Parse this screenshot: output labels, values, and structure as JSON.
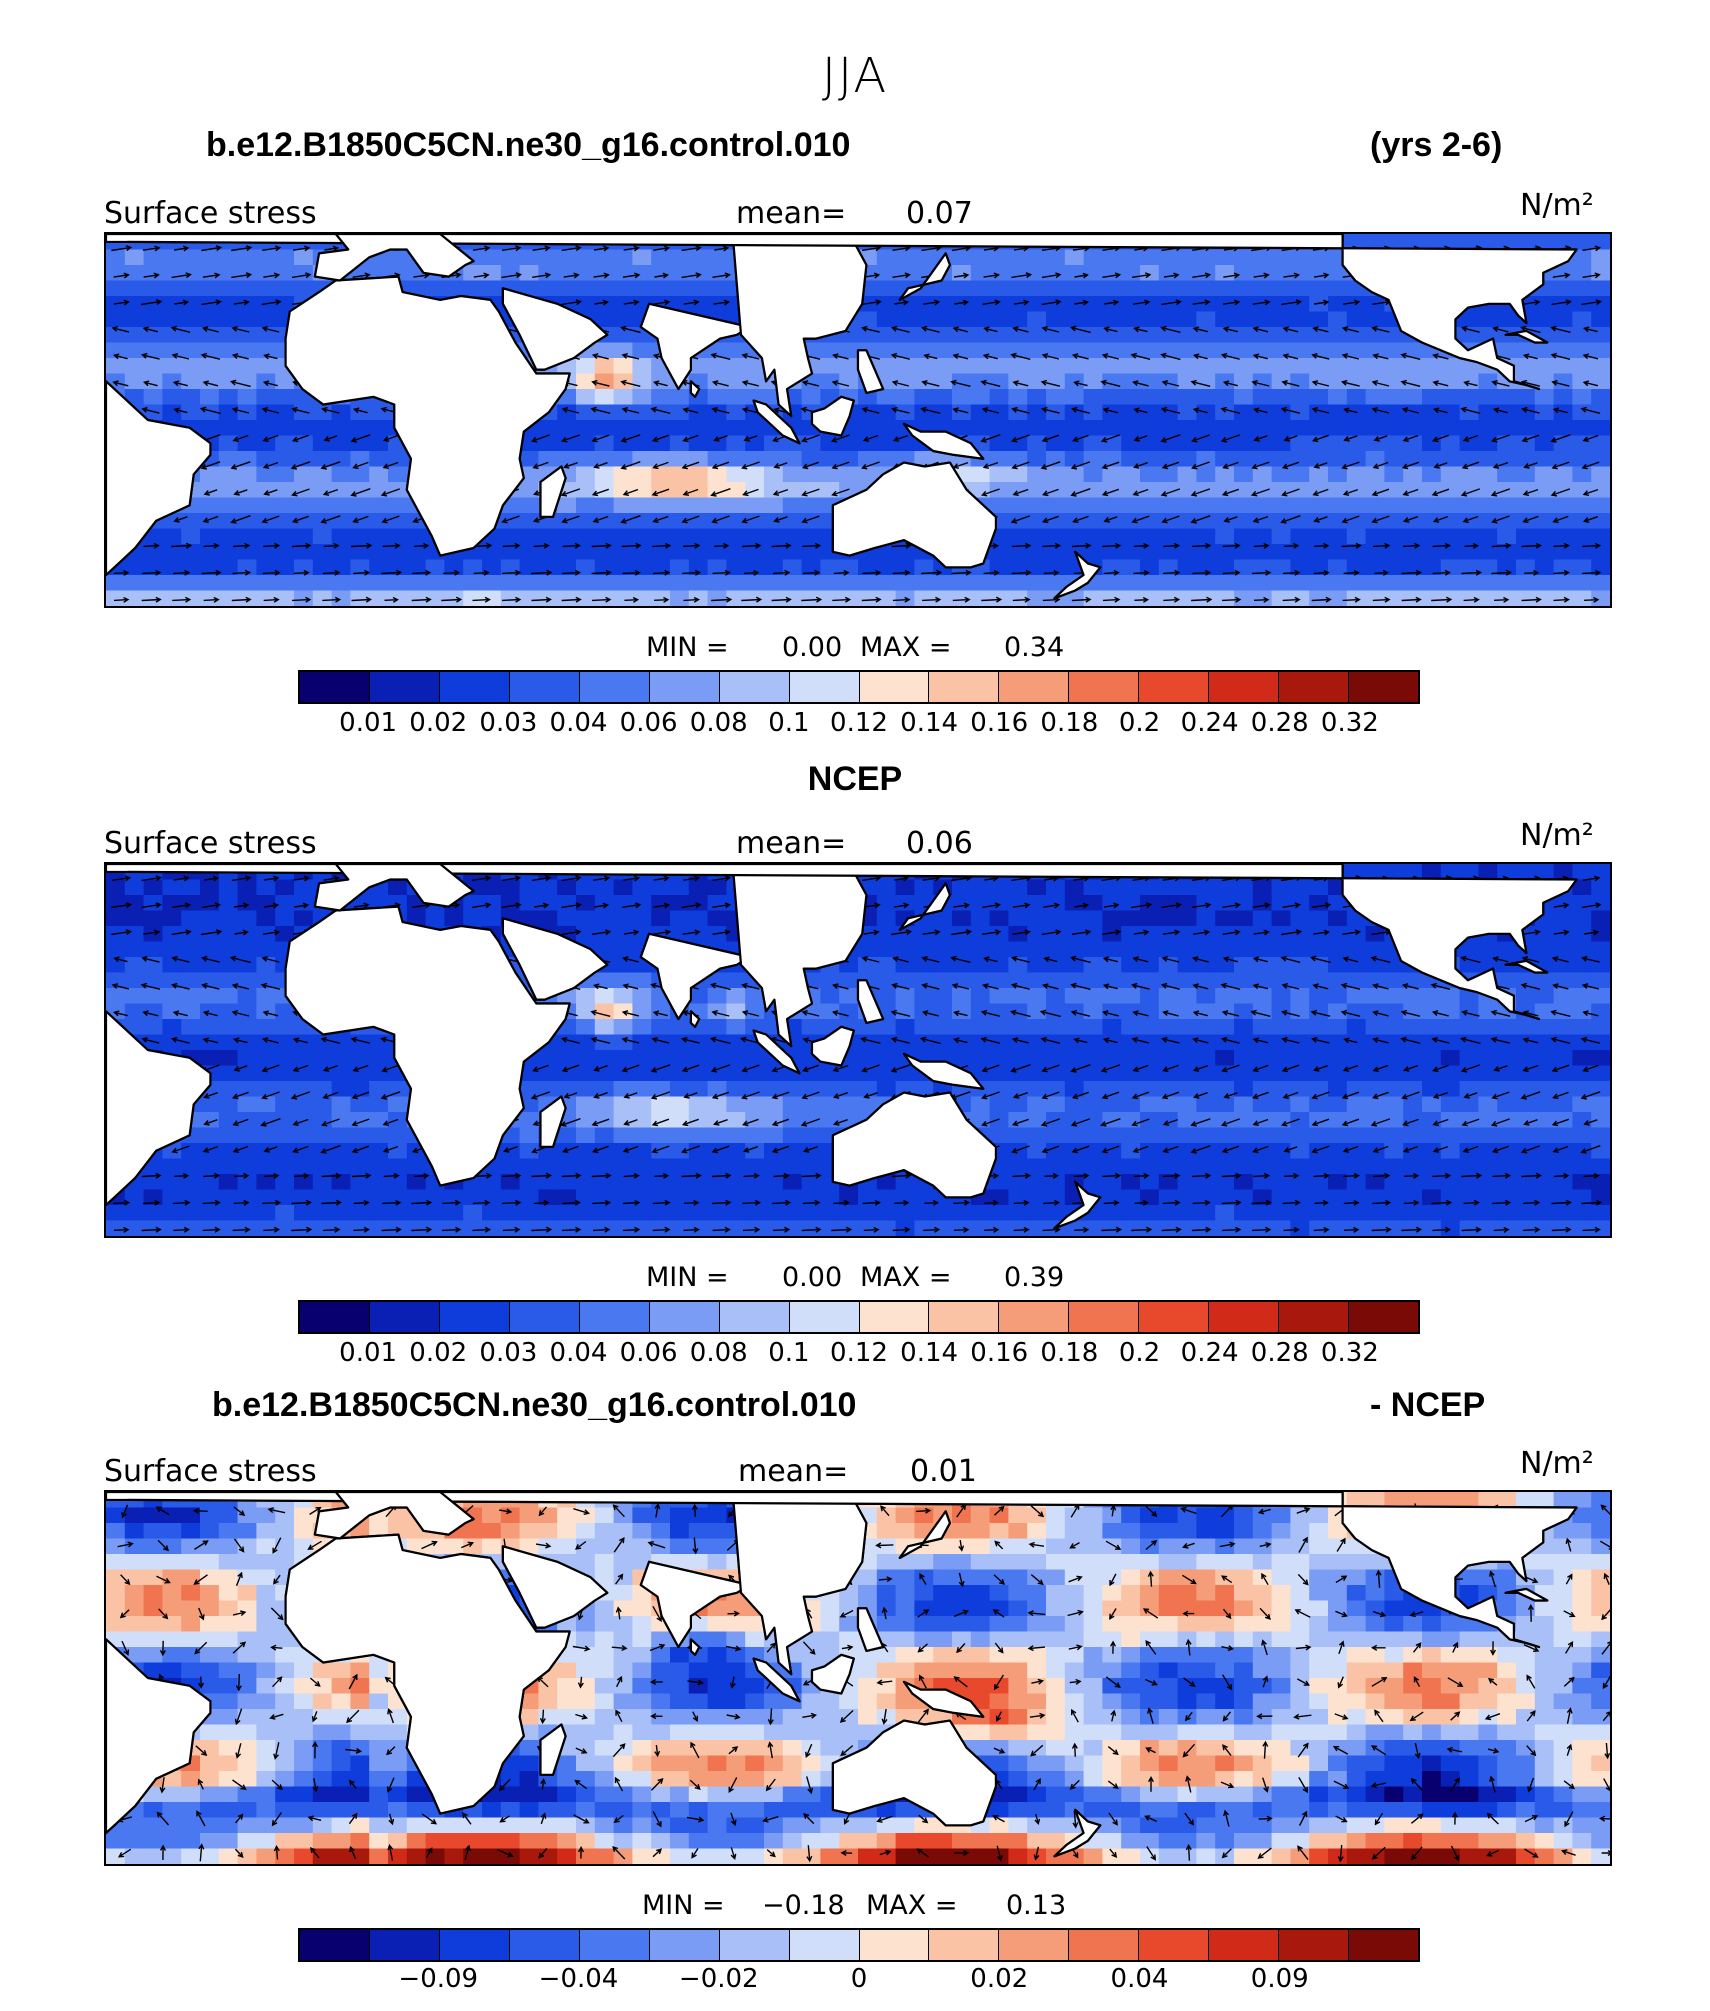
{
  "title": "JJA",
  "palette": [
    "#08006e",
    "#0a1fb4",
    "#0f3ddc",
    "#2a5ae8",
    "#4a78f0",
    "#7a9cf5",
    "#a8c0f7",
    "#d0defa",
    "#fde3cf",
    "#fbc3a6",
    "#f59c78",
    "#f0744f",
    "#e8482c",
    "#d22a18",
    "#a8180c",
    "#7a0a06"
  ],
  "land_color": "#ffffff",
  "panels": [
    {
      "header_left": "b.e12.B1850C5CN.ne30_g16.control.010",
      "header_right": "(yrs 2-6)",
      "field_label": "Surface stress",
      "mean_label": "mean=",
      "mean_value": "0.07",
      "units": "N/m²",
      "min_label": "MIN =",
      "min_value": "0.00",
      "max_label": "MAX =",
      "max_value": "0.34",
      "colorbar_ticks": [
        "0.01",
        "0.02",
        "0.03",
        "0.04",
        "0.06",
        "0.08",
        "0.1",
        "0.12",
        "0.14",
        "0.16",
        "0.18",
        "0.2",
        "0.24",
        "0.28",
        "0.32"
      ],
      "ocean_mode": "model"
    },
    {
      "header_left": "",
      "header_center": "NCEP",
      "header_right": "",
      "field_label": "Surface stress",
      "mean_label": "mean=",
      "mean_value": "0.06",
      "units": "N/m²",
      "min_label": "MIN =",
      "min_value": "0.00",
      "max_label": "MAX =",
      "max_value": "0.39",
      "colorbar_ticks": [
        "0.01",
        "0.02",
        "0.03",
        "0.04",
        "0.06",
        "0.08",
        "0.1",
        "0.12",
        "0.14",
        "0.16",
        "0.18",
        "0.2",
        "0.24",
        "0.28",
        "0.32"
      ],
      "ocean_mode": "obs"
    },
    {
      "header_left": "b.e12.B1850C5CN.ne30_g16.control.010",
      "header_right": "- NCEP",
      "field_label": "Surface stress",
      "mean_label": "mean=",
      "mean_value": "0.01",
      "units": "N/m²",
      "min_label": "MIN =",
      "min_value": "−0.18",
      "max_label": "MAX =",
      "max_value": "0.13",
      "colorbar_ticks": [
        "−0.09",
        "−0.04",
        "−0.02",
        "0",
        "0.02",
        "0.04",
        "0.09"
      ],
      "ocean_mode": "diff"
    }
  ]
}
